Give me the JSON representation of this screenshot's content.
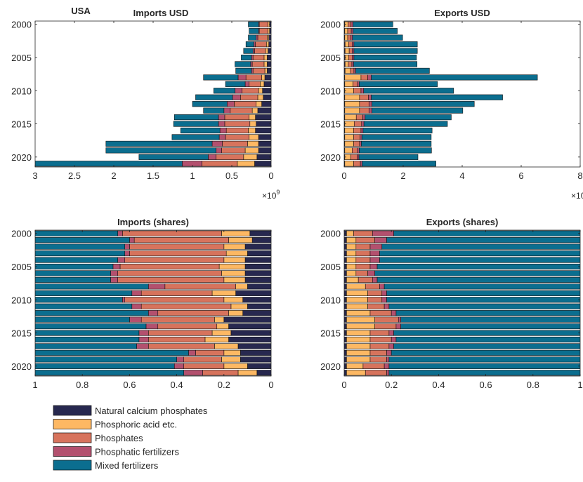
{
  "country": "USA",
  "colors": {
    "Natural calcium phosphates": "#27284f",
    "Phosphoric acid etc.": "#fdb863",
    "Phosphates": "#d7735c",
    "Phosphatic fertilizers": "#b3506e",
    "Mixed fertilizers": "#0b6e8f"
  },
  "legend": [
    "Natural calcium phosphates",
    "Phosphoric acid etc.",
    "Phosphates",
    "Phosphatic fertilizers",
    "Mixed fertilizers"
  ],
  "chart_data": [
    {
      "id": "imports_usd",
      "type": "bar",
      "orientation": "horizontal-stacked",
      "x_direction": "reversed",
      "title": "Imports USD",
      "years": [
        2000,
        2001,
        2002,
        2003,
        2004,
        2005,
        2006,
        2007,
        2008,
        2009,
        2010,
        2011,
        2012,
        2013,
        2014,
        2015,
        2016,
        2017,
        2018,
        2019,
        2020,
        2021
      ],
      "xlim": [
        0,
        3
      ],
      "xticks": [
        "0",
        "0.5",
        "1",
        "1.5",
        "2",
        "2.5",
        "3"
      ],
      "exponent_label": "10",
      "exponent_power": "9",
      "yticks": [
        "2000",
        "2005",
        "2010",
        "2015",
        "2020"
      ],
      "series": [
        {
          "name": "Natural calcium phosphates",
          "values": [
            0.02,
            0.02,
            0.03,
            0.03,
            0.04,
            0.05,
            0.05,
            0.05,
            0.08,
            0.09,
            0.11,
            0.1,
            0.12,
            0.17,
            0.2,
            0.19,
            0.2,
            0.16,
            0.16,
            0.16,
            0.18,
            0.21
          ]
        },
        {
          "name": "Phosphoric acid etc.",
          "values": [
            0.02,
            0.02,
            0.02,
            0.03,
            0.03,
            0.04,
            0.04,
            0.03,
            0.04,
            0.05,
            0.05,
            0.07,
            0.07,
            0.07,
            0.08,
            0.08,
            0.09,
            0.12,
            0.14,
            0.17,
            0.17,
            0.22
          ]
        },
        {
          "name": "Phosphates",
          "values": [
            0.11,
            0.11,
            0.12,
            0.14,
            0.14,
            0.14,
            0.15,
            0.15,
            0.2,
            0.14,
            0.21,
            0.22,
            0.28,
            0.28,
            0.31,
            0.32,
            0.28,
            0.3,
            0.32,
            0.3,
            0.35,
            0.45
          ]
        },
        {
          "name": "Phosphatic fertilizers",
          "values": [
            0.01,
            0.01,
            0.02,
            0.02,
            0.02,
            0.02,
            0.02,
            0.02,
            0.1,
            0.05,
            0.09,
            0.1,
            0.09,
            0.08,
            0.08,
            0.08,
            0.08,
            0.08,
            0.13,
            0.07,
            0.1,
            0.25
          ]
        },
        {
          "name": "Mixed fertilizers",
          "values": [
            0.13,
            0.12,
            0.1,
            0.1,
            0.12,
            0.13,
            0.2,
            0.2,
            0.44,
            0.25,
            0.27,
            0.47,
            0.44,
            0.26,
            0.56,
            0.57,
            0.5,
            0.6,
            1.35,
            1.4,
            0.88,
            1.87
          ]
        }
      ]
    },
    {
      "id": "exports_usd",
      "type": "bar",
      "orientation": "horizontal-stacked",
      "title": "Exports USD",
      "years": [
        2000,
        2001,
        2002,
        2003,
        2004,
        2005,
        2006,
        2007,
        2008,
        2009,
        2010,
        2011,
        2012,
        2013,
        2014,
        2015,
        2016,
        2017,
        2018,
        2019,
        2020,
        2021
      ],
      "xlim": [
        0,
        8
      ],
      "xticks": [
        "0",
        "2",
        "4",
        "6",
        "8"
      ],
      "exponent_label": "10",
      "exponent_power": "9",
      "yticks": [
        "2000",
        "2005",
        "2010",
        "2015",
        "2020"
      ],
      "series": [
        {
          "name": "Natural calcium phosphates",
          "values": [
            0.02,
            0.02,
            0.02,
            0.03,
            0.03,
            0.03,
            0.03,
            0.03,
            0.02,
            0.02,
            0.02,
            0.02,
            0.02,
            0.02,
            0.02,
            0.02,
            0.02,
            0.02,
            0.02,
            0.02,
            0.02,
            0.02
          ]
        },
        {
          "name": "Phosphoric acid etc.",
          "values": [
            0.11,
            0.1,
            0.1,
            0.12,
            0.14,
            0.12,
            0.11,
            0.18,
            0.55,
            0.28,
            0.3,
            0.5,
            0.5,
            0.5,
            0.39,
            0.32,
            0.3,
            0.3,
            0.3,
            0.25,
            0.2,
            0.3
          ]
        },
        {
          "name": "Phosphates",
          "values": [
            0.1,
            0.12,
            0.1,
            0.12,
            0.1,
            0.12,
            0.12,
            0.12,
            0.23,
            0.15,
            0.25,
            0.3,
            0.32,
            0.32,
            0.22,
            0.25,
            0.25,
            0.22,
            0.2,
            0.18,
            0.22,
            0.23
          ]
        },
        {
          "name": "Phosphatic fertilizers",
          "values": [
            0.07,
            0.06,
            0.06,
            0.06,
            0.06,
            0.06,
            0.06,
            0.06,
            0.12,
            0.06,
            0.09,
            0.1,
            0.1,
            0.1,
            0.08,
            0.08,
            0.07,
            0.06,
            0.06,
            0.06,
            0.06,
            0.06
          ]
        },
        {
          "name": "Mixed fertilizers",
          "values": [
            1.35,
            1.5,
            1.7,
            2.15,
            2.15,
            2.12,
            2.15,
            2.5,
            5.63,
            2.65,
            3.05,
            4.45,
            3.47,
            3.08,
            2.92,
            2.83,
            2.34,
            2.35,
            2.37,
            2.45,
            2.0,
            2.5
          ]
        }
      ]
    },
    {
      "id": "imports_shares",
      "type": "bar",
      "orientation": "horizontal-stacked",
      "x_direction": "reversed",
      "title": "Imports (shares)",
      "years": [
        2000,
        2001,
        2002,
        2003,
        2004,
        2005,
        2006,
        2007,
        2008,
        2009,
        2010,
        2011,
        2012,
        2013,
        2014,
        2015,
        2016,
        2017,
        2018,
        2019,
        2020,
        2021
      ],
      "xlim": [
        0,
        1
      ],
      "xticks": [
        "0",
        "0.2",
        "0.4",
        "0.6",
        "0.8",
        "1"
      ],
      "yticks": [
        "2000",
        "2005",
        "2010",
        "2015",
        "2020"
      ],
      "series": [
        {
          "name": "Natural calcium phosphates",
          "values": [
            0.09,
            0.08,
            0.11,
            0.1,
            0.11,
            0.11,
            0.11,
            0.11,
            0.1,
            0.15,
            0.12,
            0.1,
            0.12,
            0.2,
            0.18,
            0.17,
            0.18,
            0.14,
            0.13,
            0.13,
            0.1,
            0.06
          ]
        },
        {
          "name": "Phosphoric acid etc.",
          "values": [
            0.12,
            0.1,
            0.09,
            0.09,
            0.09,
            0.11,
            0.1,
            0.09,
            0.05,
            0.1,
            0.08,
            0.07,
            0.06,
            0.04,
            0.05,
            0.08,
            0.1,
            0.1,
            0.07,
            0.08,
            0.1,
            0.08
          ]
        },
        {
          "name": "Phosphates",
          "values": [
            0.42,
            0.4,
            0.4,
            0.41,
            0.42,
            0.42,
            0.44,
            0.45,
            0.3,
            0.3,
            0.42,
            0.38,
            0.3,
            0.31,
            0.25,
            0.27,
            0.24,
            0.28,
            0.12,
            0.16,
            0.17,
            0.15
          ]
        },
        {
          "name": "Phosphatic fertilizers",
          "values": [
            0.02,
            0.02,
            0.02,
            0.02,
            0.03,
            0.03,
            0.03,
            0.03,
            0.07,
            0.04,
            0.01,
            0.04,
            0.04,
            0.05,
            0.05,
            0.04,
            0.04,
            0.05,
            0.03,
            0.03,
            0.04,
            0.08
          ]
        },
        {
          "name": "Mixed fertilizers",
          "values": [
            0.35,
            0.4,
            0.38,
            0.38,
            0.35,
            0.33,
            0.32,
            0.32,
            0.48,
            0.41,
            0.37,
            0.41,
            0.48,
            0.4,
            0.47,
            0.44,
            0.44,
            0.43,
            0.65,
            0.6,
            0.59,
            0.63
          ]
        }
      ]
    },
    {
      "id": "exports_shares",
      "type": "bar",
      "orientation": "horizontal-stacked",
      "title": "Exports (shares)",
      "years": [
        2000,
        2001,
        2002,
        2003,
        2004,
        2005,
        2006,
        2007,
        2008,
        2009,
        2010,
        2011,
        2012,
        2013,
        2014,
        2015,
        2016,
        2017,
        2018,
        2019,
        2020,
        2021
      ],
      "xlim": [
        0,
        1
      ],
      "xticks": [
        "0",
        "0.2",
        "0.4",
        "0.6",
        "0.8",
        "1"
      ],
      "yticks": [
        "2000",
        "2005",
        "2010",
        "2015",
        "2020"
      ],
      "series": [
        {
          "name": "Natural calcium phosphates",
          "values": [
            0.01,
            0.01,
            0.01,
            0.01,
            0.01,
            0.01,
            0.01,
            0.01,
            0.01,
            0.01,
            0.01,
            0.01,
            0.01,
            0.01,
            0.01,
            0.01,
            0.01,
            0.01,
            0.01,
            0.01,
            0.01,
            0.01
          ]
        },
        {
          "name": "Phosphoric acid etc.",
          "values": [
            0.03,
            0.04,
            0.04,
            0.04,
            0.04,
            0.04,
            0.04,
            0.05,
            0.08,
            0.09,
            0.09,
            0.09,
            0.1,
            0.12,
            0.12,
            0.1,
            0.1,
            0.1,
            0.1,
            0.1,
            0.07,
            0.08
          ]
        },
        {
          "name": "Phosphates",
          "values": [
            0.08,
            0.08,
            0.06,
            0.06,
            0.06,
            0.06,
            0.05,
            0.06,
            0.06,
            0.06,
            0.06,
            0.07,
            0.09,
            0.1,
            0.09,
            0.08,
            0.09,
            0.08,
            0.07,
            0.07,
            0.09,
            0.09
          ]
        },
        {
          "name": "Phosphatic fertilizers",
          "values": [
            0.09,
            0.05,
            0.05,
            0.04,
            0.04,
            0.03,
            0.03,
            0.02,
            0.02,
            0.02,
            0.02,
            0.02,
            0.02,
            0.01,
            0.02,
            0.02,
            0.02,
            0.02,
            0.02,
            0.01,
            0.02,
            0.01
          ]
        },
        {
          "name": "Mixed fertilizers",
          "values": [
            0.79,
            0.82,
            0.84,
            0.85,
            0.85,
            0.86,
            0.87,
            0.86,
            0.83,
            0.82,
            0.82,
            0.81,
            0.78,
            0.76,
            0.76,
            0.79,
            0.78,
            0.79,
            0.8,
            0.81,
            0.81,
            0.81
          ]
        }
      ]
    }
  ]
}
